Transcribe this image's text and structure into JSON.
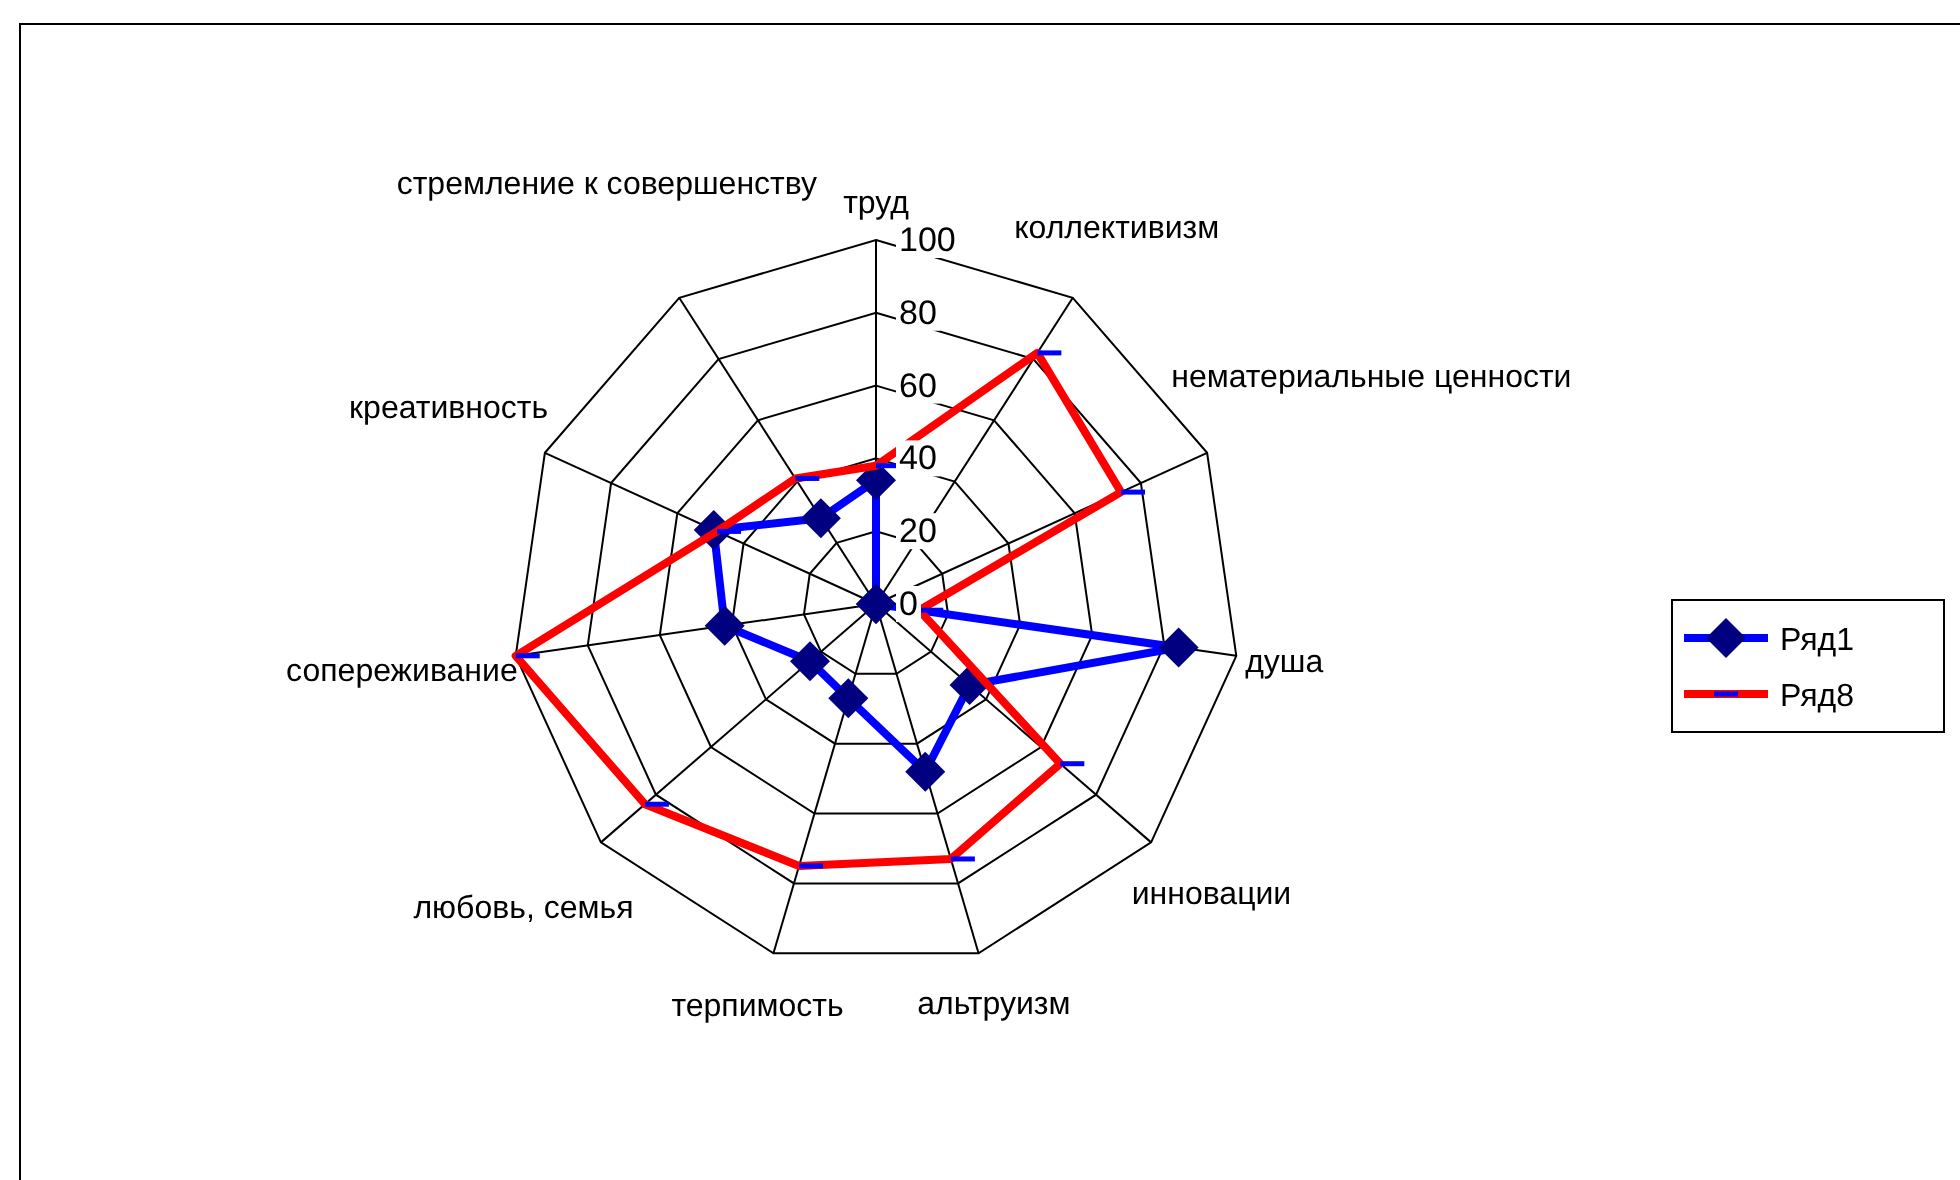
{
  "chart_data": {
    "type": "radar",
    "categories": [
      "труд",
      "коллективизм",
      "нематериальные ценности",
      "душа",
      "инновации",
      "альтруизм",
      "терпимость",
      "любовь, семья",
      "сопереживание",
      "креативность",
      "стремление к совершенству"
    ],
    "series": [
      {
        "name": "Ряд1",
        "color": "#0000ff",
        "marker": "diamond",
        "values": [
          34,
          0,
          0,
          84,
          34,
          48,
          27,
          24,
          42,
          49,
          28
        ]
      },
      {
        "name": "Ряд8",
        "color": "#ff0000",
        "marker": "dash",
        "values": [
          38,
          82,
          74,
          12,
          67,
          73,
          75,
          84,
          100,
          48,
          41
        ]
      }
    ],
    "ylim": [
      0,
      100
    ],
    "yticks": [
      0,
      20,
      40,
      60,
      80,
      100
    ],
    "grid": true,
    "legend": "right"
  }
}
